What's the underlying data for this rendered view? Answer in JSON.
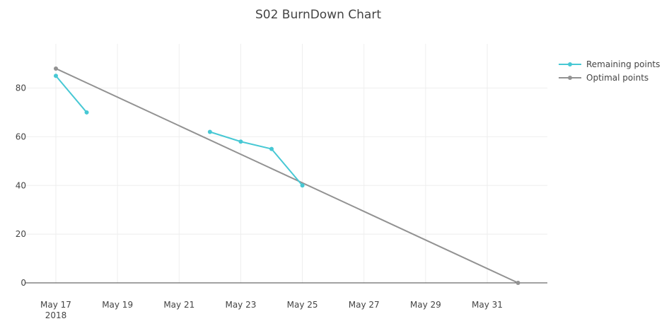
{
  "chart_data": {
    "type": "line",
    "title": "S02 BurnDown Chart",
    "xlabel": "",
    "ylabel": "",
    "x_axis": {
      "type": "date",
      "range": [
        "2018-05-17",
        "2018-06-01"
      ],
      "ticks": [
        {
          "date": "2018-05-17",
          "label": "May 17",
          "sublabel": "2018"
        },
        {
          "date": "2018-05-19",
          "label": "May 19"
        },
        {
          "date": "2018-05-21",
          "label": "May 21"
        },
        {
          "date": "2018-05-23",
          "label": "May 23"
        },
        {
          "date": "2018-05-25",
          "label": "May 25"
        },
        {
          "date": "2018-05-27",
          "label": "May 27"
        },
        {
          "date": "2018-05-29",
          "label": "May 29"
        },
        {
          "date": "2018-05-31",
          "label": "May 31"
        }
      ]
    },
    "ylim": [
      0,
      92
    ],
    "yticks": [
      0,
      20,
      40,
      60,
      80
    ],
    "grid": true,
    "legend_position": "top-right",
    "series": [
      {
        "name": "Remaining points",
        "color": "#47c8d4",
        "segments": [
          [
            [
              "2018-05-17",
              85
            ],
            [
              "2018-05-18",
              70
            ]
          ],
          [
            [
              "2018-05-22",
              62
            ],
            [
              "2018-05-23",
              58
            ],
            [
              "2018-05-24",
              55
            ],
            [
              "2018-05-25",
              40
            ]
          ]
        ]
      },
      {
        "name": "Optimal points",
        "color": "#929292",
        "segments": [
          [
            [
              "2018-05-17",
              88
            ],
            [
              "2018-06-01",
              0
            ]
          ]
        ]
      }
    ]
  }
}
